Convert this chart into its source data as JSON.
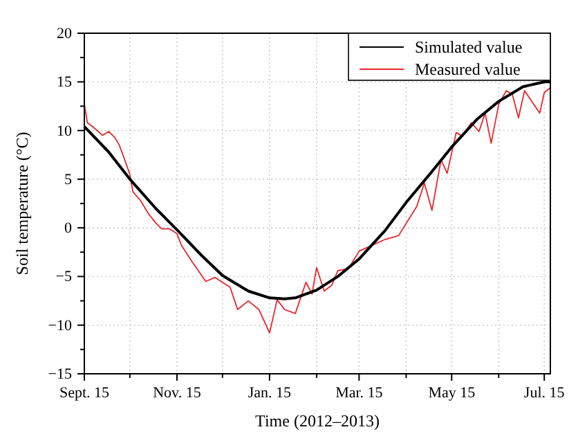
{
  "chart_data": {
    "type": "line",
    "xlabel": "Time (2012–2013)",
    "ylabel": "Soil temperature (°C)",
    "xlim": [
      "2012-09-15",
      "2013-07-19"
    ],
    "ylim": [
      -15,
      20
    ],
    "xticks": [
      {
        "value": "2012-09-15",
        "label": "Sept. 15"
      },
      {
        "value": "2012-10-15",
        "label": null
      },
      {
        "value": "2012-11-15",
        "label": "Nov. 15"
      },
      {
        "value": "2012-12-15",
        "label": null
      },
      {
        "value": "2013-01-15",
        "label": "Jan. 15"
      },
      {
        "value": "2013-02-15",
        "label": null
      },
      {
        "value": "2013-03-15",
        "label": "Mar. 15"
      },
      {
        "value": "2013-04-15",
        "label": null
      },
      {
        "value": "2013-05-15",
        "label": "May 15"
      },
      {
        "value": "2013-06-15",
        "label": null
      },
      {
        "value": "2013-07-15",
        "label": "Jul. 15"
      }
    ],
    "yticks": [
      -15,
      {
        "value": -12.5,
        "label": null
      },
      -10,
      {
        "value": -7.5,
        "label": null
      },
      -5,
      {
        "value": -2.5,
        "label": null
      },
      0,
      {
        "value": 2.5,
        "label": null
      },
      5,
      {
        "value": 7.5,
        "label": null
      },
      10,
      {
        "value": 12.5,
        "label": null
      },
      15,
      {
        "value": 17.5,
        "label": null
      },
      20
    ],
    "grid": true,
    "legend": "top right",
    "line_style": "solid",
    "marker": "none",
    "series": [
      {
        "name": "Simulated value",
        "color": "#000000",
        "x": [
          "2012-09-15",
          "2012-10-01",
          "2012-10-15",
          "2012-11-01",
          "2012-11-15",
          "2012-12-01",
          "2012-12-15",
          "2013-01-01",
          "2013-01-15",
          "2013-01-25",
          "2013-02-01",
          "2013-02-15",
          "2013-03-01",
          "2013-03-15",
          "2013-04-01",
          "2013-04-15",
          "2013-05-01",
          "2013-05-15",
          "2013-06-01",
          "2013-06-15",
          "2013-07-01",
          "2013-07-15",
          "2013-07-19"
        ],
        "values": [
          10.4,
          7.8,
          5.0,
          2.0,
          -0.2,
          -2.8,
          -4.9,
          -6.5,
          -7.2,
          -7.3,
          -7.2,
          -6.4,
          -5.0,
          -3.2,
          -0.3,
          2.6,
          5.6,
          8.3,
          11.2,
          13.0,
          14.5,
          15.0,
          15.0
        ]
      },
      {
        "name": "Measured value",
        "color": "#e8262b",
        "x": [
          "2012-09-15",
          "2012-09-17",
          "2012-09-22",
          "2012-09-27",
          "2012-10-01",
          "2012-10-05",
          "2012-10-08",
          "2012-10-12",
          "2012-10-15",
          "2012-10-17",
          "2012-10-22",
          "2012-10-27",
          "2012-11-01",
          "2012-11-05",
          "2012-11-10",
          "2012-11-15",
          "2012-11-18",
          "2012-11-25",
          "2012-12-04",
          "2012-12-10",
          "2012-12-20",
          "2012-12-25",
          "2013-01-01",
          "2013-01-08",
          "2013-01-15",
          "2013-01-20",
          "2013-01-25",
          "2013-02-01",
          "2013-02-08",
          "2013-02-12",
          "2013-02-15",
          "2013-02-20",
          "2013-02-25",
          "2013-03-01",
          "2013-03-08",
          "2013-03-15",
          "2013-03-22",
          "2013-04-01",
          "2013-04-10",
          "2013-04-18",
          "2013-04-22",
          "2013-04-27",
          "2013-05-02",
          "2013-05-08",
          "2013-05-12",
          "2013-05-18",
          "2013-05-22",
          "2013-05-28",
          "2013-06-02",
          "2013-06-06",
          "2013-06-10",
          "2013-06-15",
          "2013-06-20",
          "2013-06-24",
          "2013-06-28",
          "2013-07-02",
          "2013-07-08",
          "2013-07-12",
          "2013-07-15",
          "2013-07-19"
        ],
        "values": [
          12.7,
          10.8,
          10.2,
          9.5,
          9.9,
          9.3,
          8.5,
          6.8,
          5.5,
          3.7,
          2.8,
          1.5,
          0.5,
          -0.1,
          -0.1,
          -0.6,
          -1.8,
          -3.5,
          -5.5,
          -5.1,
          -6.1,
          -8.4,
          -7.5,
          -8.4,
          -10.8,
          -7.4,
          -8.4,
          -8.8,
          -5.6,
          -6.8,
          -4.1,
          -6.5,
          -5.9,
          -4.4,
          -4.2,
          -2.4,
          -1.9,
          -1.2,
          -0.8,
          1.2,
          2.2,
          4.6,
          1.8,
          7.0,
          5.6,
          9.8,
          9.4,
          10.8,
          9.9,
          11.8,
          8.7,
          12.7,
          14.1,
          13.7,
          11.3,
          14.1,
          12.7,
          11.8,
          13.9,
          14.4
        ]
      }
    ]
  }
}
